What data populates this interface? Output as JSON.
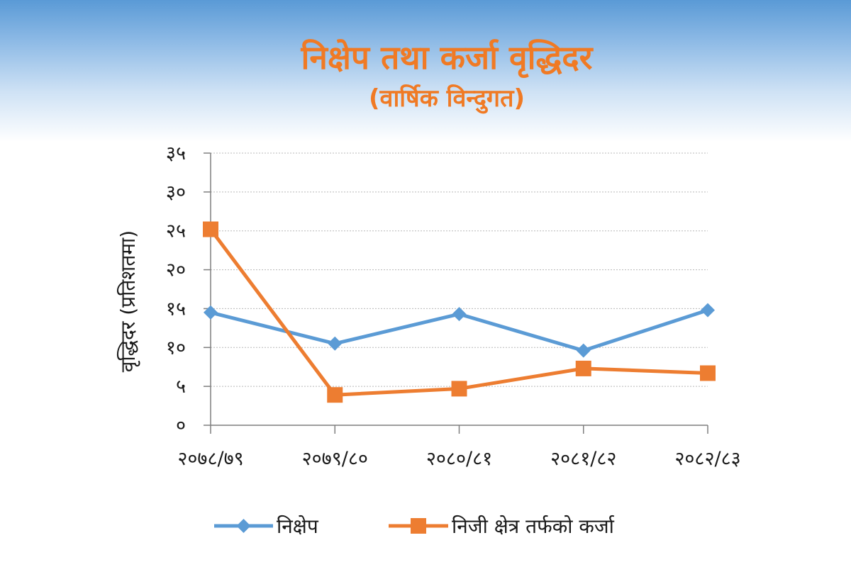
{
  "chart_data": {
    "type": "line",
    "title": "निक्षेप तथा कर्जा वृद्धिदर",
    "subtitle": "(वार्षिक विन्दुगत)",
    "ylabel": "वृद्धिदर (प्रतिशतमा)",
    "xlabel": "",
    "categories": [
      "२०७८/७९",
      "२०७९/८०",
      "२०८०/८१",
      "२०८१/८२",
      "२०८२/८३"
    ],
    "ylim": [
      0,
      35
    ],
    "yticks": [
      0,
      5,
      10,
      15,
      20,
      25,
      30,
      35
    ],
    "ytick_labels": [
      "०",
      "५",
      "१०",
      "१५",
      "२०",
      "२५",
      "३०",
      "३५"
    ],
    "grid": true,
    "legend_position": "bottom",
    "series": [
      {
        "name": "निक्षेप",
        "values": [
          14.5,
          10.5,
          14.3,
          9.6,
          14.8
        ],
        "color": "#5b9bd5",
        "marker": "diamond"
      },
      {
        "name": "निजी क्षेत्र तर्फको कर्जा",
        "values": [
          25.2,
          3.9,
          4.7,
          7.3,
          6.7
        ],
        "color": "#ed7d31",
        "marker": "square"
      }
    ]
  }
}
